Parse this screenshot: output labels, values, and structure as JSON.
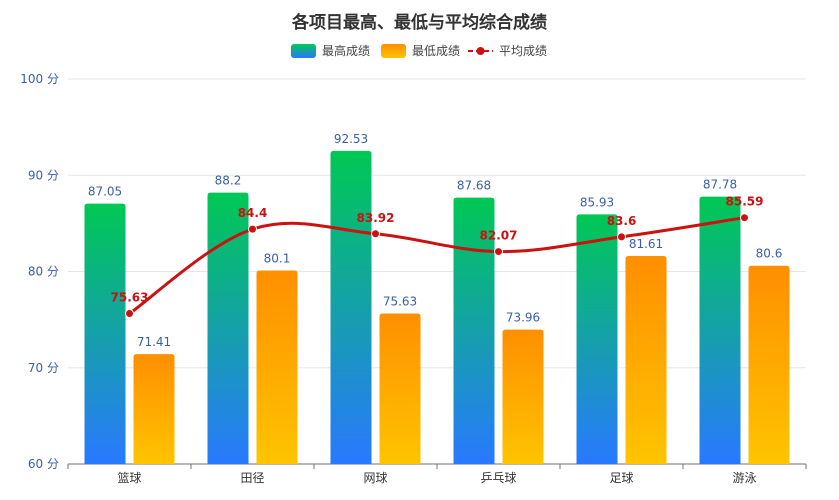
{
  "chart_data": {
    "type": "bar",
    "title": "各项目最高、最低与平均综合成绩",
    "categories": [
      "篮球",
      "田径",
      "网球",
      "乒乓球",
      "足球",
      "游泳"
    ],
    "series": [
      {
        "name": "最高成绩",
        "kind": "bar",
        "values": [
          87.05,
          88.2,
          92.53,
          87.68,
          85.93,
          87.78
        ],
        "color_top": "#00c853",
        "color_bottom": "#2979ff"
      },
      {
        "name": "最低成绩",
        "kind": "bar",
        "values": [
          71.41,
          80.1,
          75.63,
          73.96,
          81.61,
          80.6
        ],
        "color_top": "#ff8f00",
        "color_bottom": "#ffc400"
      },
      {
        "name": "平均成绩",
        "kind": "line",
        "values": [
          75.63,
          84.4,
          83.92,
          82.07,
          83.6,
          85.59
        ],
        "color": "#cc1111"
      }
    ],
    "ylim": [
      60,
      100
    ],
    "yticks": [
      60,
      70,
      80,
      90,
      100
    ],
    "ytick_suffix": " 分",
    "ytick_labels": [
      "60 分",
      "70 分",
      "80 分",
      "90 分",
      "100 分"
    ],
    "legend_position": "top-center",
    "grid": true
  }
}
